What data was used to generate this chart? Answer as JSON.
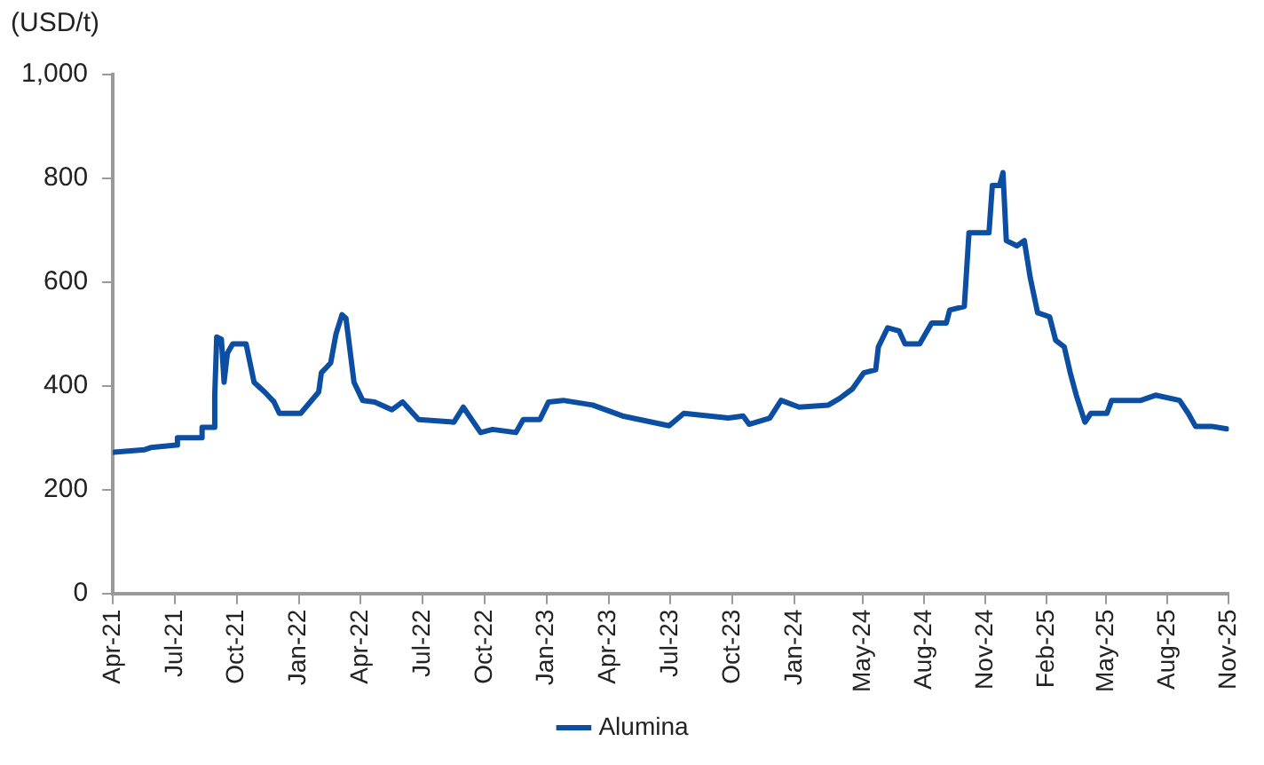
{
  "chart_data": {
    "type": "line",
    "ylabel": "(USD/t)",
    "legend": "bottom",
    "grid": false,
    "marker": "none",
    "line_style": "solid",
    "xlim": [
      "2021-04-01",
      "2025-11-01"
    ],
    "xticks": [
      {
        "value": "2021-04-01",
        "label": "Apr-21"
      },
      {
        "value": "2021-07-03",
        "label": "Jul-21"
      },
      {
        "value": "2021-10-04",
        "label": "Oct-21"
      },
      {
        "value": "2022-01-05",
        "label": "Jan-22"
      },
      {
        "value": "2022-04-08",
        "label": "Apr-22"
      },
      {
        "value": "2022-07-10",
        "label": "Jul-22"
      },
      {
        "value": "2022-10-11",
        "label": "Oct-22"
      },
      {
        "value": "2023-01-12",
        "label": "Jan-23"
      },
      {
        "value": "2023-04-15",
        "label": "Apr-23"
      },
      {
        "value": "2023-07-17",
        "label": "Jul-23"
      },
      {
        "value": "2023-10-18",
        "label": "Oct-23"
      },
      {
        "value": "2024-01-19",
        "label": "Jan-24"
      },
      {
        "value": "2024-05-01",
        "label": "May-24"
      },
      {
        "value": "2024-08-01",
        "label": "Aug-24"
      },
      {
        "value": "2024-11-01",
        "label": "Nov-24"
      },
      {
        "value": "2025-02-01",
        "label": "Feb-25"
      },
      {
        "value": "2025-05-01",
        "label": "May-25"
      },
      {
        "value": "2025-08-01",
        "label": "Aug-25"
      },
      {
        "value": "2025-11-01",
        "label": "Nov-25"
      }
    ],
    "ylim": [
      0,
      1000
    ],
    "yticks": [
      0,
      200,
      400,
      600,
      800,
      {
        "value": 1000,
        "label": "1,000"
      }
    ],
    "x": [
      "2021-04-03",
      "2021-05-19",
      "2021-05-28",
      "2021-07-05",
      "2021-07-07",
      "2021-08-11",
      "2021-08-13",
      "2021-08-30",
      "2021-09-01",
      "2021-09-04",
      "2021-09-11",
      "2021-09-15",
      "2021-09-20",
      "2021-09-28",
      "2021-10-18",
      "2021-10-30",
      "2021-11-15",
      "2021-11-29",
      "2021-12-07",
      "2022-01-08",
      "2022-02-04",
      "2022-02-08",
      "2022-02-22",
      "2022-03-02",
      "2022-03-11",
      "2022-03-17",
      "2022-03-29",
      "2022-04-11",
      "2022-04-29",
      "2022-05-25",
      "2022-06-10",
      "2022-07-04",
      "2022-08-26",
      "2022-09-09",
      "2022-10-05",
      "2022-10-23",
      "2022-11-27",
      "2022-12-08",
      "2023-01-02",
      "2023-01-15",
      "2023-02-06",
      "2023-03-22",
      "2023-05-06",
      "2023-07-15",
      "2023-08-06",
      "2023-10-12",
      "2023-11-03",
      "2023-11-12",
      "2023-12-13",
      "2023-12-30",
      "2024-01-26",
      "2024-03-10",
      "2024-03-27",
      "2024-04-15",
      "2024-05-02",
      "2024-05-20",
      "2024-05-24",
      "2024-06-07",
      "2024-06-24",
      "2024-07-03",
      "2024-07-25",
      "2024-08-12",
      "2024-09-03",
      "2024-09-08",
      "2024-09-30",
      "2024-10-07",
      "2024-11-06",
      "2024-11-11",
      "2024-11-22",
      "2024-11-27",
      "2024-12-02",
      "2024-12-18",
      "2024-12-29",
      "2025-01-07",
      "2025-01-18",
      "2025-02-05",
      "2025-02-14",
      "2025-02-27",
      "2025-03-08",
      "2025-03-17",
      "2025-03-30",
      "2025-04-08",
      "2025-05-02",
      "2025-05-09",
      "2025-06-22",
      "2025-07-14",
      "2025-08-19",
      "2025-09-01",
      "2025-09-12",
      "2025-10-06",
      "2025-10-29"
    ],
    "series": [
      {
        "name": "Alumina",
        "color": "#0b4ea2",
        "values": [
          272,
          277,
          281,
          286,
          300,
          300,
          320,
          320,
          382,
          494,
          490,
          407,
          463,
          481,
          481,
          407,
          388,
          369,
          347,
          347,
          388,
          425,
          444,
          500,
          537,
          530,
          407,
          372,
          369,
          354,
          369,
          335,
          330,
          359,
          310,
          316,
          310,
          335,
          335,
          369,
          372,
          363,
          342,
          323,
          347,
          338,
          342,
          326,
          338,
          372,
          359,
          363,
          376,
          394,
          425,
          431,
          475,
          512,
          506,
          481,
          481,
          521,
          521,
          546,
          553,
          695,
          695,
          786,
          786,
          811,
          680,
          670,
          680,
          608,
          541,
          533,
          488,
          475,
          425,
          382,
          330,
          347,
          347,
          372,
          372,
          382,
          372,
          347,
          322,
          322,
          317
        ]
      }
    ]
  }
}
